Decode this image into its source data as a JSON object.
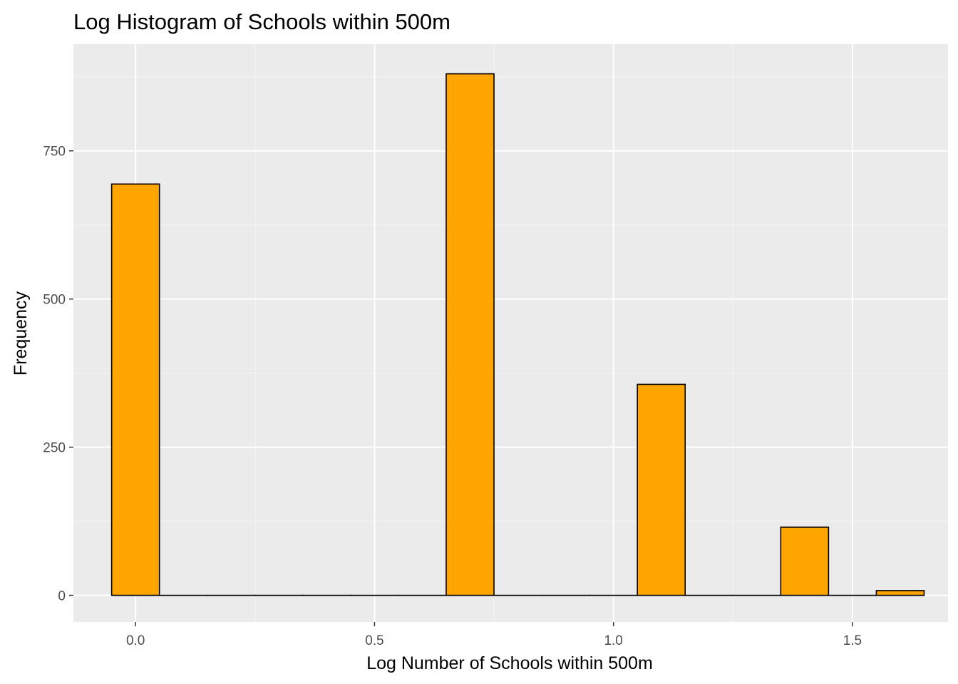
{
  "chart_data": {
    "type": "bar",
    "title": "Log Histogram of Schools within 500m",
    "xlabel": "Log Number of Schools within 500m",
    "ylabel": "Frequency",
    "xlim": [
      -0.13,
      1.7
    ],
    "ylim": [
      -45,
      930
    ],
    "x_ticks": [
      0.0,
      0.5,
      1.0,
      1.5
    ],
    "x_tick_labels": [
      "0.0",
      "0.5",
      "1.0",
      "1.5"
    ],
    "y_ticks": [
      0,
      250,
      500,
      750
    ],
    "y_tick_labels": [
      "0",
      "250",
      "500",
      "750"
    ],
    "bin_width": 0.1,
    "bins": [
      {
        "x": 0.0,
        "count": 694
      },
      {
        "x": 0.1,
        "count": 0
      },
      {
        "x": 0.2,
        "count": 0
      },
      {
        "x": 0.3,
        "count": 0
      },
      {
        "x": 0.4,
        "count": 0
      },
      {
        "x": 0.5,
        "count": 0
      },
      {
        "x": 0.6,
        "count": 0
      },
      {
        "x": 0.7,
        "count": 880
      },
      {
        "x": 0.8,
        "count": 0
      },
      {
        "x": 0.9,
        "count": 0
      },
      {
        "x": 1.0,
        "count": 0
      },
      {
        "x": 1.1,
        "count": 356
      },
      {
        "x": 1.2,
        "count": 0
      },
      {
        "x": 1.3,
        "count": 0
      },
      {
        "x": 1.4,
        "count": 115
      },
      {
        "x": 1.5,
        "count": 0
      },
      {
        "x": 1.6,
        "count": 8
      }
    ],
    "grid": true,
    "colors": {
      "fill": "#FFA500",
      "outline": "#000000",
      "panel": "#EBEBEB",
      "grid_major": "#FFFFFF",
      "grid_minor": "#F5F5F5",
      "tick_label": "#4D4D4D"
    }
  }
}
